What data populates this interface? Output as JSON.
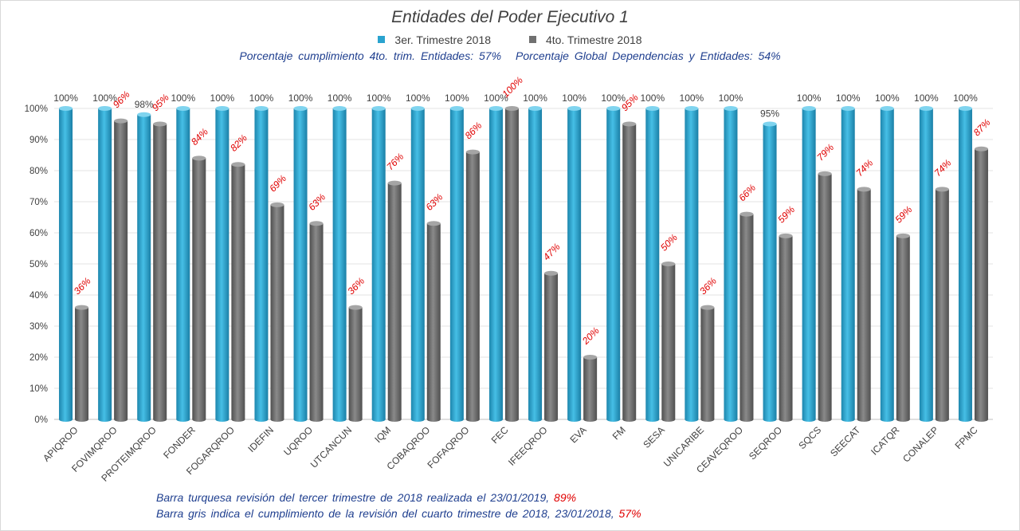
{
  "chart_data": {
    "type": "bar",
    "title": "Entidades del Poder Ejecutivo 1",
    "categories": [
      "APIQROO",
      "FOVIMQROO",
      "PROTEIMQROO",
      "FONDER",
      "FOGARQROO",
      "IDEFIN",
      "UQROO",
      "UTCANCUN",
      "IQM",
      "COBAQROO",
      "FOFAQROO",
      "FEC",
      "IFEEQROO",
      "EVA",
      "FM",
      "SESA",
      "UNICARIBE",
      "CEAVEQROO",
      "SEQROO",
      "SQCS",
      "SEECAT",
      "ICATQR",
      "CONALEP",
      "FPMC"
    ],
    "series": [
      {
        "name": "3er. Trimestre 2018",
        "color": "#2aa3cf",
        "label_color": "#404040",
        "values": [
          100,
          100,
          98,
          100,
          100,
          100,
          100,
          100,
          100,
          100,
          100,
          100,
          100,
          100,
          100,
          100,
          100,
          100,
          95,
          100,
          100,
          100,
          100,
          100
        ]
      },
      {
        "name": "4to. Trimestre 2018",
        "color": "#707070",
        "label_color": "#e00000",
        "values": [
          36,
          96,
          95,
          84,
          82,
          69,
          63,
          36,
          76,
          63,
          86,
          100,
          47,
          20,
          95,
          50,
          36,
          66,
          59,
          79,
          74,
          59,
          74,
          87
        ]
      }
    ],
    "ylim": [
      0,
      100
    ],
    "yticks": [
      "0%",
      "10%",
      "20%",
      "30%",
      "40%",
      "50%",
      "60%",
      "70%",
      "80%",
      "90%",
      "100%"
    ],
    "grid": true,
    "legend_position": "top-center",
    "value_suffix": "%"
  },
  "summary": {
    "entities_text": "Porcentaje cumplimiento 4to. trim. Entidades: 57%",
    "global_text": "Porcentaje Global Dependencias y Entidades: 54%"
  },
  "notes": {
    "turquoise_text": "Barra turquesa revisión del tercer trimestre de 2018 realizada el 23/01/2019,",
    "turquoise_pct": "89%",
    "gray_text": "Barra gris indica el cumplimiento de la revisión del cuarto trimestre de 2018, 23/01/2018,",
    "gray_pct": "57%"
  }
}
